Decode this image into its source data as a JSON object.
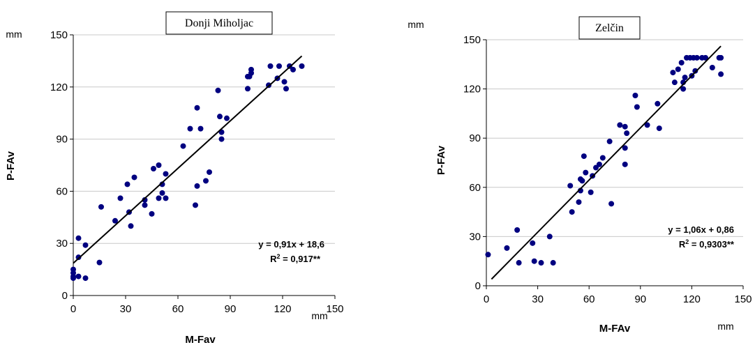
{
  "chart_data": [
    {
      "type": "scatter",
      "title": "Donji Miholjac",
      "xlabel": "M-Fav",
      "ylabel": "P-FAv",
      "x_unit": "mm",
      "y_unit": "mm",
      "xlim": [
        0,
        150
      ],
      "ylim": [
        0,
        150
      ],
      "xticks": [
        "0",
        "30",
        "60",
        "90",
        "120",
        "150"
      ],
      "yticks": [
        "0",
        "30",
        "60",
        "90",
        "120",
        "150"
      ],
      "grid": "horizontal",
      "point_color": "#000080",
      "trendline": {
        "slope": 0.91,
        "intercept": 18.6,
        "x_range": [
          0,
          131
        ]
      },
      "equation": "y = 0,91x + 18,6",
      "r2_label": "R",
      "r2_sup": "2",
      "r2_value": " = 0,917**",
      "points": [
        [
          0,
          10
        ],
        [
          0,
          11
        ],
        [
          0,
          13
        ],
        [
          0,
          15
        ],
        [
          3,
          11
        ],
        [
          3,
          22
        ],
        [
          3,
          33
        ],
        [
          7,
          10
        ],
        [
          7,
          29
        ],
        [
          15,
          19
        ],
        [
          16,
          51
        ],
        [
          24,
          43
        ],
        [
          27,
          56
        ],
        [
          31,
          64
        ],
        [
          32,
          48
        ],
        [
          33,
          40
        ],
        [
          35,
          68
        ],
        [
          41,
          52
        ],
        [
          41,
          55
        ],
        [
          45,
          47
        ],
        [
          46,
          73
        ],
        [
          49,
          56
        ],
        [
          49,
          75
        ],
        [
          51,
          59
        ],
        [
          51,
          64
        ],
        [
          53,
          56
        ],
        [
          53,
          70
        ],
        [
          63,
          86
        ],
        [
          67,
          96
        ],
        [
          70,
          52
        ],
        [
          71,
          63
        ],
        [
          71,
          108
        ],
        [
          73,
          96
        ],
        [
          76,
          66
        ],
        [
          78,
          71
        ],
        [
          83,
          118
        ],
        [
          84,
          103
        ],
        [
          85,
          94
        ],
        [
          85,
          90
        ],
        [
          88,
          102
        ],
        [
          100,
          119
        ],
        [
          100,
          126
        ],
        [
          101,
          126
        ],
        [
          102,
          128
        ],
        [
          102,
          130
        ],
        [
          112,
          121
        ],
        [
          113,
          132
        ],
        [
          117,
          125
        ],
        [
          118,
          132
        ],
        [
          121,
          123
        ],
        [
          122,
          119
        ],
        [
          124,
          132
        ],
        [
          126,
          130
        ],
        [
          131,
          132
        ]
      ]
    },
    {
      "type": "scatter",
      "title": "Zelčin",
      "xlabel": "M-FAv",
      "ylabel": "P-FAv",
      "x_unit": "mm",
      "y_unit": "mm",
      "xlim": [
        0,
        150
      ],
      "ylim": [
        0,
        150
      ],
      "xticks": [
        "0",
        "30",
        "60",
        "90",
        "120",
        "150"
      ],
      "yticks": [
        "0",
        "30",
        "60",
        "90",
        "120",
        "150"
      ],
      "grid": "horizontal",
      "point_color": "#000080",
      "trendline": {
        "slope": 1.06,
        "intercept": 0.86,
        "x_range": [
          3,
          137
        ]
      },
      "equation": "y = 1,06x + 0,86",
      "r2_label": "R",
      "r2_sup": "2",
      "r2_value": " = 0,9303**",
      "points": [
        [
          1,
          19
        ],
        [
          12,
          23
        ],
        [
          18,
          34
        ],
        [
          19,
          14
        ],
        [
          27,
          26
        ],
        [
          28,
          15
        ],
        [
          32,
          14
        ],
        [
          37,
          30
        ],
        [
          39,
          14
        ],
        [
          49,
          61
        ],
        [
          50,
          45
        ],
        [
          54,
          51
        ],
        [
          55,
          58
        ],
        [
          55,
          65
        ],
        [
          56,
          64
        ],
        [
          57,
          79
        ],
        [
          58,
          69
        ],
        [
          61,
          57
        ],
        [
          62,
          67
        ],
        [
          64,
          72
        ],
        [
          66,
          74
        ],
        [
          68,
          78
        ],
        [
          72,
          88
        ],
        [
          73,
          50
        ],
        [
          78,
          98
        ],
        [
          81,
          74
        ],
        [
          81,
          84
        ],
        [
          81,
          97
        ],
        [
          82,
          93
        ],
        [
          87,
          116
        ],
        [
          88,
          109
        ],
        [
          94,
          98
        ],
        [
          100,
          111
        ],
        [
          101,
          96
        ],
        [
          109,
          130
        ],
        [
          110,
          124
        ],
        [
          112,
          132
        ],
        [
          114,
          136
        ],
        [
          115,
          124
        ],
        [
          115,
          120
        ],
        [
          116,
          127
        ],
        [
          117,
          139
        ],
        [
          119,
          139
        ],
        [
          120,
          128
        ],
        [
          121,
          139
        ],
        [
          122,
          131
        ],
        [
          123,
          139
        ],
        [
          126,
          139
        ],
        [
          128,
          139
        ],
        [
          132,
          133
        ],
        [
          136,
          139
        ],
        [
          137,
          129
        ],
        [
          137,
          139
        ]
      ]
    }
  ]
}
